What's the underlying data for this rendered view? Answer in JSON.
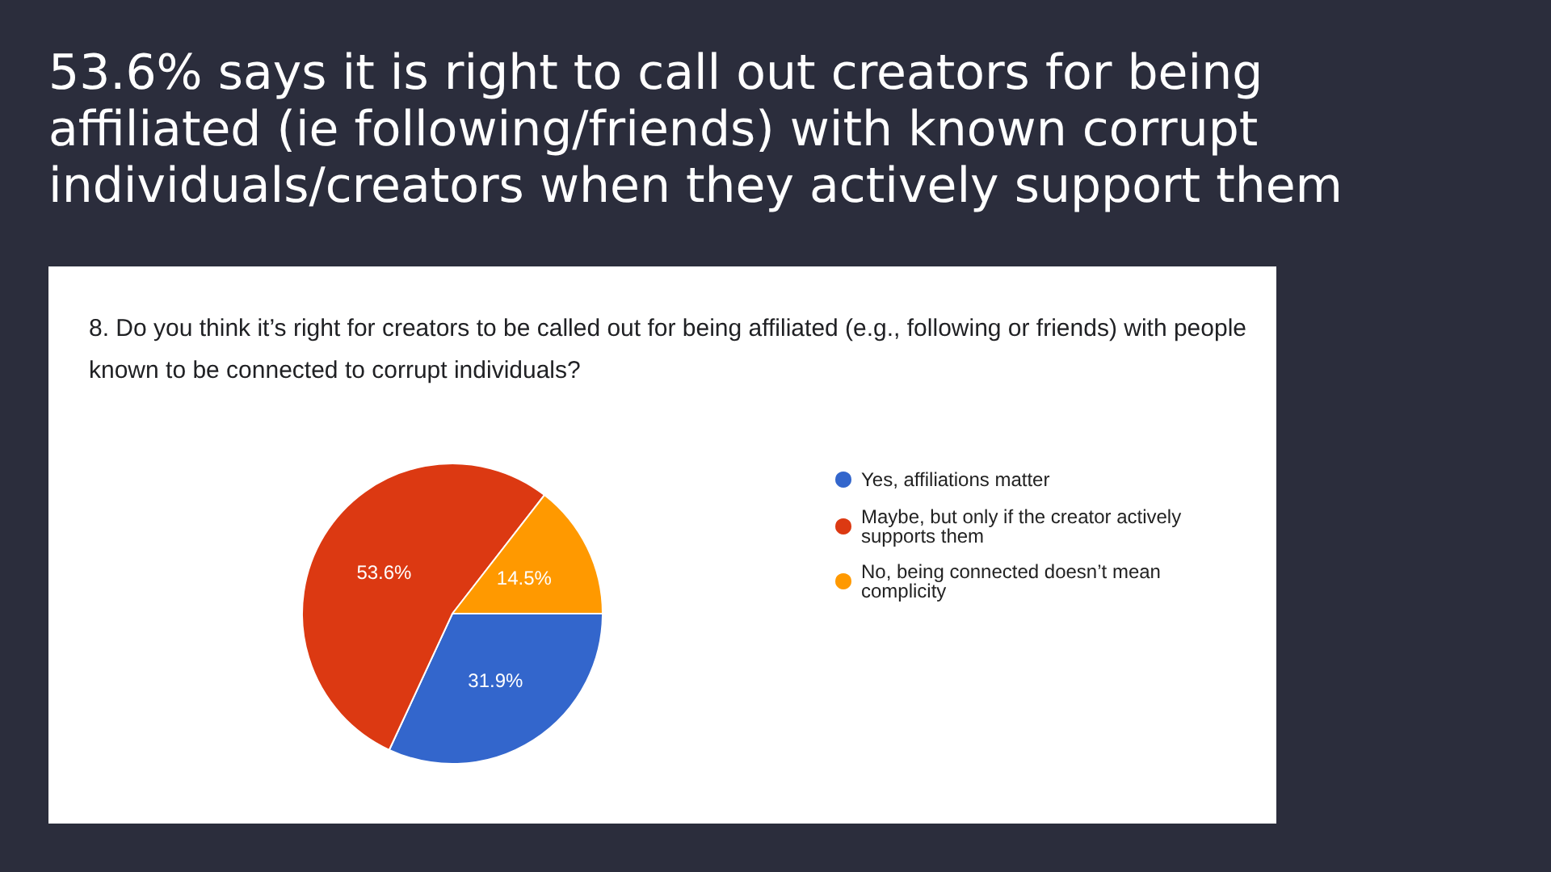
{
  "chart_data": {
    "type": "pie",
    "title": "53.6% says it is right to call out creators for being affiliated (ie following/friends) with known corrupt individuals/creators when they actively support them",
    "subtitle": "8. Do you think it’s right for creators to be called out for being affiliated (e.g., following or friends) with people known to be connected to corrupt individuals?",
    "categories": [
      "Yes, affiliations matter",
      "Maybe, but only if the creator actively supports them",
      "No, being connected doesn’t mean complicity"
    ],
    "values": [
      31.9,
      53.6,
      14.5
    ],
    "colors": [
      "#3366cc",
      "#dc3912",
      "#ff9900"
    ],
    "value_labels": [
      "31.9%",
      "53.6%",
      "14.5%"
    ],
    "legend": "right"
  }
}
